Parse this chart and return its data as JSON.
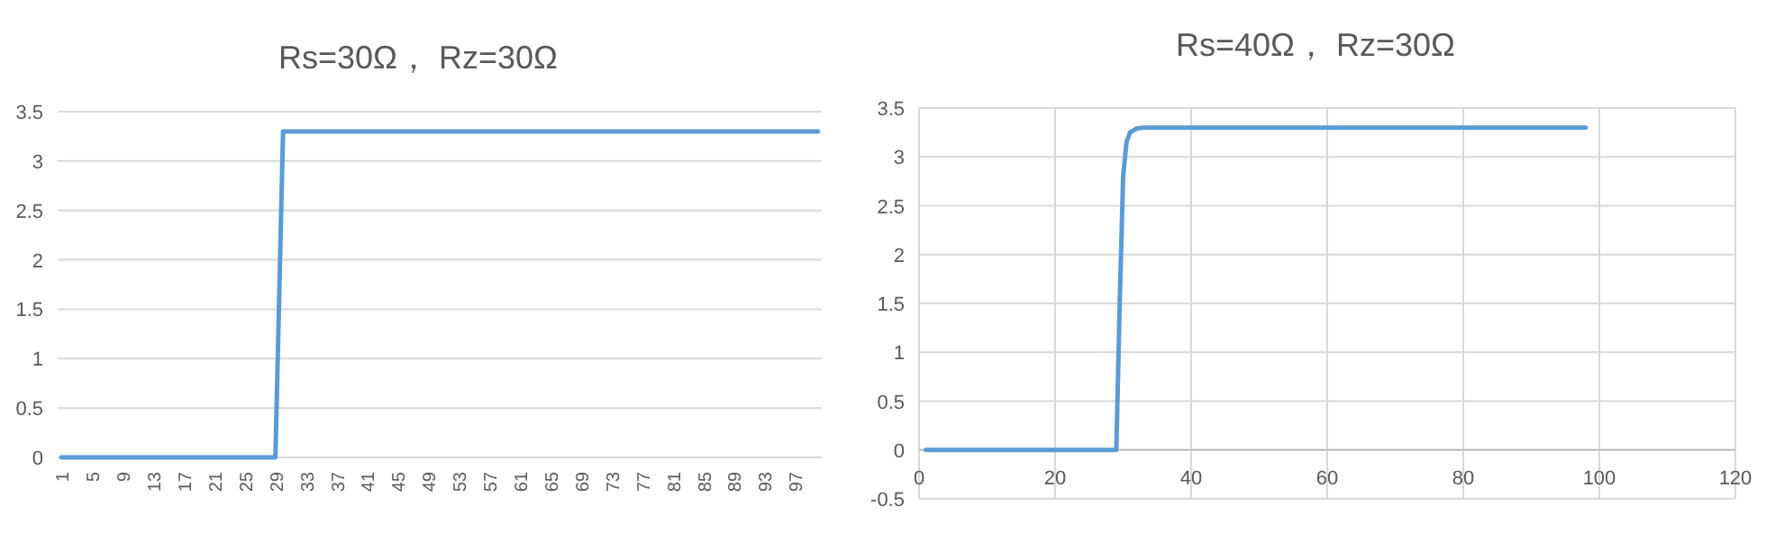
{
  "chart_data": [
    {
      "type": "line",
      "title": "Rs=30Ω， Rz=30Ω",
      "categories": [
        "1",
        null,
        null,
        null,
        "5",
        null,
        null,
        null,
        "9",
        null,
        null,
        null,
        "13",
        null,
        null,
        null,
        "17",
        null,
        null,
        null,
        "21",
        null,
        null,
        null,
        "25",
        null,
        null,
        null,
        "29",
        null,
        null,
        null,
        "33",
        null,
        null,
        null,
        "37",
        null,
        null,
        null,
        "41",
        null,
        null,
        null,
        "45",
        null,
        null,
        null,
        "49",
        null,
        null,
        null,
        "53",
        null,
        null,
        null,
        "57",
        null,
        null,
        null,
        "61",
        null,
        null,
        null,
        "65",
        null,
        null,
        null,
        "69",
        null,
        null,
        null,
        "73",
        null,
        null,
        null,
        "77",
        null,
        null,
        null,
        "81",
        null,
        null,
        null,
        "85",
        null,
        null,
        null,
        "89",
        null,
        null,
        null,
        "93",
        null,
        null,
        null,
        "97",
        null,
        null,
        null
      ],
      "values": [
        0,
        0,
        0,
        0,
        0,
        0,
        0,
        0,
        0,
        0,
        0,
        0,
        0,
        0,
        0,
        0,
        0,
        0,
        0,
        0,
        0,
        0,
        0,
        0,
        0,
        0,
        0,
        0,
        0,
        3.3,
        3.3,
        3.3,
        3.3,
        3.3,
        3.3,
        3.3,
        3.3,
        3.3,
        3.3,
        3.3,
        3.3,
        3.3,
        3.3,
        3.3,
        3.3,
        3.3,
        3.3,
        3.3,
        3.3,
        3.3,
        3.3,
        3.3,
        3.3,
        3.3,
        3.3,
        3.3,
        3.3,
        3.3,
        3.3,
        3.3,
        3.3,
        3.3,
        3.3,
        3.3,
        3.3,
        3.3,
        3.3,
        3.3,
        3.3,
        3.3,
        3.3,
        3.3,
        3.3,
        3.3,
        3.3,
        3.3,
        3.3,
        3.3,
        3.3,
        3.3,
        3.3,
        3.3,
        3.3,
        3.3,
        3.3,
        3.3,
        3.3,
        3.3,
        3.3,
        3.3,
        3.3,
        3.3,
        3.3,
        3.3,
        3.3,
        3.3,
        3.3,
        3.3,
        3.3,
        3.3
      ],
      "color": "#5b9bd5",
      "ylim": [
        0,
        3.5
      ],
      "yticks": [
        0,
        0.5,
        1,
        1.5,
        2,
        2.5,
        3,
        3.5
      ],
      "grid": "y"
    },
    {
      "type": "line",
      "title": "Rs=40Ω， Rz=30Ω",
      "x": [
        1,
        29,
        29.5,
        30,
        30.5,
        31,
        32,
        33,
        98
      ],
      "values": [
        0,
        0,
        1.5,
        2.8,
        3.15,
        3.25,
        3.29,
        3.3,
        3.3
      ],
      "color": "#5b9bd5",
      "xlim": [
        0,
        120
      ],
      "xticks": [
        0,
        20,
        40,
        60,
        80,
        100,
        120
      ],
      "ylim": [
        -0.5,
        3.5
      ],
      "yticks": [
        -0.5,
        0,
        0.5,
        1,
        1.5,
        2,
        2.5,
        3,
        3.5
      ],
      "grid": true
    }
  ]
}
